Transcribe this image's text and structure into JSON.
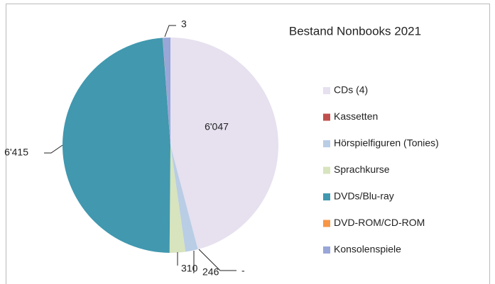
{
  "chart_data": {
    "type": "pie",
    "title": "Bestand Nonbooks 2021",
    "categories": [
      "CDs (4)",
      "Kassetten",
      "Hörspielfiguren (Tonies)",
      "Sprachkurse",
      "DVDs/Blu-ray",
      "DVD-ROM/CD-ROM",
      "Konsolenspiele"
    ],
    "values": [
      6047,
      0,
      246,
      310,
      6415,
      3,
      150
    ],
    "value_labels": [
      "6'047",
      "-",
      "246",
      "310",
      "6'415",
      "3",
      null
    ],
    "colors": [
      "#e6e0ef",
      "#c0504d",
      "#b9cde5",
      "#d7e4bd",
      "#4198af",
      "#f79646",
      "#98a6d8"
    ],
    "legend": "right"
  }
}
